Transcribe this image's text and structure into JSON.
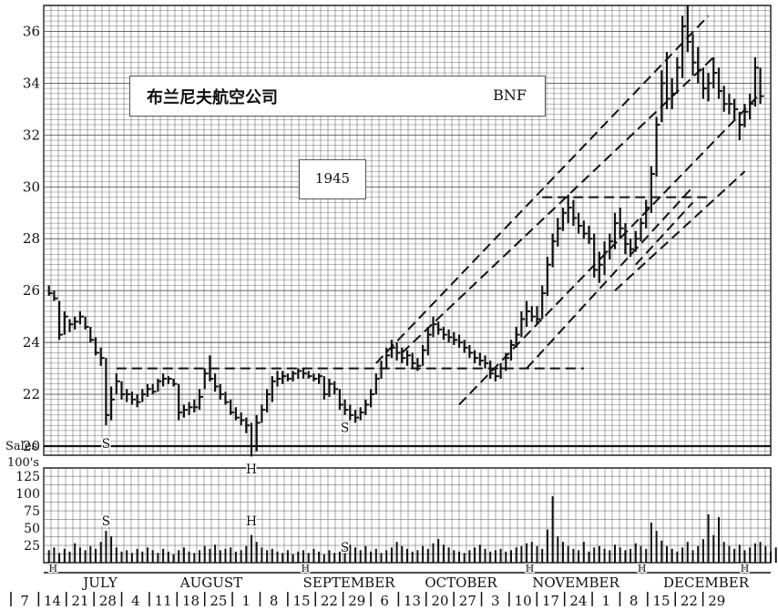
{
  "title": {
    "name": "布兰尼夫航空公司",
    "ticker": "BNF",
    "year": "1945"
  },
  "chart_data": [
    {
      "type": "bar",
      "name": "price",
      "ylim": [
        20,
        37
      ],
      "yticks": [
        20,
        22,
        24,
        26,
        28,
        30,
        32,
        34,
        36
      ],
      "days": [
        {
          "h": 26.2,
          "l": 25.8,
          "c": 25.9
        },
        {
          "h": 26.0,
          "l": 25.6,
          "c": 25.7
        },
        {
          "h": 25.6,
          "l": 24.1,
          "c": 24.3
        },
        {
          "h": 25.2,
          "l": 24.3,
          "c": 25.0
        },
        {
          "h": 24.9,
          "l": 24.4,
          "c": 24.7
        },
        {
          "h": 25.0,
          "l": 24.5,
          "c": 24.8
        },
        {
          "h": 25.2,
          "l": 24.7,
          "c": 25.0
        },
        {
          "h": 25.0,
          "l": 24.5,
          "c": 24.6
        },
        {
          "h": 24.6,
          "l": 24.0,
          "c": 24.1
        },
        {
          "h": 24.2,
          "l": 23.5,
          "c": 23.6
        },
        {
          "h": 23.8,
          "l": 23.1,
          "c": 23.4
        },
        {
          "h": 23.4,
          "l": 20.8,
          "c": 21.2
        },
        {
          "h": 22.3,
          "l": 21.0,
          "c": 21.8
        },
        {
          "h": 22.8,
          "l": 22.0,
          "c": 22.5
        },
        {
          "h": 22.5,
          "l": 21.8,
          "c": 22.0
        },
        {
          "h": 22.2,
          "l": 21.7,
          "c": 22.0
        },
        {
          "h": 22.1,
          "l": 21.6,
          "c": 21.8
        },
        {
          "h": 22.0,
          "l": 21.5,
          "c": 21.7
        },
        {
          "h": 22.2,
          "l": 21.7,
          "c": 22.0
        },
        {
          "h": 22.4,
          "l": 21.9,
          "c": 22.2
        },
        {
          "h": 22.4,
          "l": 22.0,
          "c": 22.1
        },
        {
          "h": 22.6,
          "l": 22.1,
          "c": 22.5
        },
        {
          "h": 22.8,
          "l": 22.3,
          "c": 22.6
        },
        {
          "h": 22.7,
          "l": 22.4,
          "c": 22.6
        },
        {
          "h": 22.6,
          "l": 22.3,
          "c": 22.4
        },
        {
          "h": 22.4,
          "l": 21.0,
          "c": 21.3
        },
        {
          "h": 21.6,
          "l": 21.1,
          "c": 21.4
        },
        {
          "h": 21.7,
          "l": 21.2,
          "c": 21.5
        },
        {
          "h": 21.8,
          "l": 21.3,
          "c": 21.5
        },
        {
          "h": 22.2,
          "l": 21.4,
          "c": 21.9
        },
        {
          "h": 23.0,
          "l": 22.2,
          "c": 22.8
        },
        {
          "h": 23.5,
          "l": 22.5,
          "c": 22.6
        },
        {
          "h": 22.8,
          "l": 22.1,
          "c": 22.3
        },
        {
          "h": 22.4,
          "l": 21.8,
          "c": 22.0
        },
        {
          "h": 22.1,
          "l": 21.6,
          "c": 21.7
        },
        {
          "h": 21.8,
          "l": 21.2,
          "c": 21.3
        },
        {
          "h": 21.5,
          "l": 21.0,
          "c": 21.1
        },
        {
          "h": 21.3,
          "l": 20.8,
          "c": 21.0
        },
        {
          "h": 21.1,
          "l": 20.5,
          "c": 20.8
        },
        {
          "h": 20.9,
          "l": 19.6,
          "c": 20.0
        },
        {
          "h": 21.2,
          "l": 19.8,
          "c": 20.9
        },
        {
          "h": 21.6,
          "l": 20.9,
          "c": 21.4
        },
        {
          "h": 22.2,
          "l": 21.3,
          "c": 22.0
        },
        {
          "h": 22.7,
          "l": 21.7,
          "c": 22.5
        },
        {
          "h": 22.9,
          "l": 22.3,
          "c": 22.6
        },
        {
          "h": 22.9,
          "l": 22.4,
          "c": 22.7
        },
        {
          "h": 22.8,
          "l": 22.5,
          "c": 22.6
        },
        {
          "h": 22.9,
          "l": 22.5,
          "c": 22.8
        },
        {
          "h": 23.0,
          "l": 22.6,
          "c": 22.9
        },
        {
          "h": 23.0,
          "l": 22.6,
          "c": 22.8
        },
        {
          "h": 22.9,
          "l": 22.6,
          "c": 22.7
        },
        {
          "h": 22.8,
          "l": 22.5,
          "c": 22.6
        },
        {
          "h": 22.8,
          "l": 22.4,
          "c": 22.7
        },
        {
          "h": 22.7,
          "l": 21.8,
          "c": 22.0
        },
        {
          "h": 22.6,
          "l": 21.9,
          "c": 22.4
        },
        {
          "h": 22.5,
          "l": 22.0,
          "c": 22.2
        },
        {
          "h": 22.2,
          "l": 21.4,
          "c": 21.6
        },
        {
          "h": 21.8,
          "l": 21.2,
          "c": 21.4
        },
        {
          "h": 21.6,
          "l": 21.0,
          "c": 21.2
        },
        {
          "h": 21.4,
          "l": 20.9,
          "c": 21.1
        },
        {
          "h": 21.5,
          "l": 21.0,
          "c": 21.3
        },
        {
          "h": 21.8,
          "l": 21.2,
          "c": 21.6
        },
        {
          "h": 22.2,
          "l": 21.5,
          "c": 22.0
        },
        {
          "h": 22.8,
          "l": 22.0,
          "c": 22.6
        },
        {
          "h": 23.3,
          "l": 22.6,
          "c": 23.0
        },
        {
          "h": 23.8,
          "l": 23.0,
          "c": 23.5
        },
        {
          "h": 24.1,
          "l": 23.4,
          "c": 23.8
        },
        {
          "h": 24.0,
          "l": 23.3,
          "c": 23.6
        },
        {
          "h": 23.8,
          "l": 23.2,
          "c": 23.4
        },
        {
          "h": 23.7,
          "l": 23.1,
          "c": 23.5
        },
        {
          "h": 23.6,
          "l": 23.0,
          "c": 23.2
        },
        {
          "h": 23.4,
          "l": 22.9,
          "c": 23.1
        },
        {
          "h": 23.9,
          "l": 23.1,
          "c": 23.7
        },
        {
          "h": 24.6,
          "l": 23.5,
          "c": 24.3
        },
        {
          "h": 25.0,
          "l": 24.2,
          "c": 24.7
        },
        {
          "h": 24.8,
          "l": 24.3,
          "c": 24.5
        },
        {
          "h": 24.6,
          "l": 24.1,
          "c": 24.3
        },
        {
          "h": 24.5,
          "l": 24.0,
          "c": 24.2
        },
        {
          "h": 24.4,
          "l": 23.9,
          "c": 24.1
        },
        {
          "h": 24.3,
          "l": 23.8,
          "c": 24.0
        },
        {
          "h": 24.1,
          "l": 23.6,
          "c": 23.8
        },
        {
          "h": 23.9,
          "l": 23.4,
          "c": 23.6
        },
        {
          "h": 23.7,
          "l": 23.2,
          "c": 23.4
        },
        {
          "h": 23.6,
          "l": 23.1,
          "c": 23.3
        },
        {
          "h": 23.5,
          "l": 23.0,
          "c": 23.2
        },
        {
          "h": 23.3,
          "l": 22.6,
          "c": 22.8
        },
        {
          "h": 23.0,
          "l": 22.5,
          "c": 22.7
        },
        {
          "h": 23.2,
          "l": 22.6,
          "c": 23.0
        },
        {
          "h": 23.6,
          "l": 22.9,
          "c": 23.4
        },
        {
          "h": 24.1,
          "l": 23.3,
          "c": 23.9
        },
        {
          "h": 24.6,
          "l": 23.8,
          "c": 24.3
        },
        {
          "h": 25.2,
          "l": 24.2,
          "c": 24.9
        },
        {
          "h": 25.6,
          "l": 24.6,
          "c": 25.2
        },
        {
          "h": 25.4,
          "l": 24.8,
          "c": 25.0
        },
        {
          "h": 25.4,
          "l": 24.7,
          "c": 24.9
        },
        {
          "h": 26.2,
          "l": 24.9,
          "c": 25.9
        },
        {
          "h": 27.3,
          "l": 25.8,
          "c": 27.0
        },
        {
          "h": 28.2,
          "l": 26.9,
          "c": 27.9
        },
        {
          "h": 28.8,
          "l": 27.7,
          "c": 28.4
        },
        {
          "h": 29.2,
          "l": 28.3,
          "c": 29.0
        },
        {
          "h": 29.7,
          "l": 28.6,
          "c": 29.2
        },
        {
          "h": 29.5,
          "l": 28.5,
          "c": 28.8
        },
        {
          "h": 29.0,
          "l": 28.2,
          "c": 28.5
        },
        {
          "h": 28.7,
          "l": 28.0,
          "c": 28.2
        },
        {
          "h": 28.5,
          "l": 27.8,
          "c": 28.0
        },
        {
          "h": 28.2,
          "l": 26.5,
          "c": 26.8
        },
        {
          "h": 27.5,
          "l": 26.3,
          "c": 27.0
        },
        {
          "h": 27.9,
          "l": 26.6,
          "c": 27.5
        },
        {
          "h": 28.2,
          "l": 27.2,
          "c": 27.9
        },
        {
          "h": 29.0,
          "l": 27.6,
          "c": 28.6
        },
        {
          "h": 29.2,
          "l": 28.0,
          "c": 28.4
        },
        {
          "h": 28.6,
          "l": 27.4,
          "c": 27.8
        },
        {
          "h": 28.0,
          "l": 27.3,
          "c": 27.6
        },
        {
          "h": 28.3,
          "l": 27.5,
          "c": 28.0
        },
        {
          "h": 28.8,
          "l": 27.9,
          "c": 28.6
        },
        {
          "h": 29.5,
          "l": 28.4,
          "c": 29.2
        },
        {
          "h": 30.8,
          "l": 29.0,
          "c": 30.5
        },
        {
          "h": 32.7,
          "l": 30.4,
          "c": 32.4
        },
        {
          "h": 34.5,
          "l": 32.5,
          "c": 34.0
        },
        {
          "h": 35.2,
          "l": 33.0,
          "c": 33.4
        },
        {
          "h": 34.2,
          "l": 33.0,
          "c": 33.6
        },
        {
          "h": 35.0,
          "l": 33.6,
          "c": 34.6
        },
        {
          "h": 36.6,
          "l": 34.2,
          "c": 36.2
        },
        {
          "h": 37.0,
          "l": 35.2,
          "c": 35.6
        },
        {
          "h": 35.9,
          "l": 34.3,
          "c": 34.8
        },
        {
          "h": 35.4,
          "l": 34.0,
          "c": 34.5
        },
        {
          "h": 34.6,
          "l": 33.4,
          "c": 33.8
        },
        {
          "h": 34.4,
          "l": 33.3,
          "c": 34.0
        },
        {
          "h": 35.0,
          "l": 33.8,
          "c": 34.4
        },
        {
          "h": 34.6,
          "l": 33.4,
          "c": 33.7
        },
        {
          "h": 33.9,
          "l": 32.9,
          "c": 33.2
        },
        {
          "h": 33.6,
          "l": 32.8,
          "c": 33.2
        },
        {
          "h": 33.4,
          "l": 32.6,
          "c": 33.0
        },
        {
          "h": 32.9,
          "l": 31.8,
          "c": 32.4
        },
        {
          "h": 33.2,
          "l": 32.3,
          "c": 32.9
        },
        {
          "h": 33.6,
          "l": 32.6,
          "c": 33.2
        },
        {
          "h": 35.0,
          "l": 33.1,
          "c": 34.6
        },
        {
          "h": 34.6,
          "l": 33.2,
          "c": 33.5
        }
      ],
      "annotations": [
        {
          "text": "S",
          "day": 11,
          "price": 20.5
        },
        {
          "text": "H",
          "day": 39,
          "price": 19.5
        },
        {
          "text": "S",
          "day": 57,
          "price": 21.1
        }
      ]
    },
    {
      "type": "bar",
      "name": "volume",
      "ylabel": "Sales 100's",
      "ylim": [
        0,
        137
      ],
      "yticks": [
        25,
        50,
        75,
        100,
        125
      ],
      "values": [
        18,
        22,
        14,
        20,
        16,
        28,
        22,
        18,
        24,
        20,
        30,
        46,
        38,
        22,
        16,
        18,
        14,
        20,
        16,
        22,
        18,
        14,
        20,
        16,
        12,
        18,
        22,
        16,
        14,
        18,
        24,
        20,
        26,
        18,
        20,
        22,
        16,
        18,
        24,
        40,
        30,
        22,
        18,
        20,
        16,
        14,
        18,
        12,
        16,
        18,
        14,
        20,
        16,
        12,
        18,
        14,
        16,
        20,
        26,
        22,
        18,
        24,
        16,
        20,
        14,
        18,
        22,
        30,
        24,
        20,
        16,
        18,
        24,
        20,
        28,
        34,
        26,
        22,
        18,
        16,
        14,
        18,
        22,
        26,
        20,
        16,
        18,
        20,
        16,
        18,
        22,
        24,
        28,
        30,
        24,
        20,
        48,
        96,
        38,
        30,
        24,
        20,
        18,
        30,
        16,
        22,
        24,
        20,
        18,
        26,
        22,
        18,
        20,
        28,
        24,
        20,
        58,
        46,
        32,
        24,
        20,
        16,
        22,
        30,
        18,
        24,
        34,
        70,
        40,
        66,
        30,
        24,
        20,
        26,
        18,
        22,
        28,
        30,
        24,
        16,
        22,
        30
      ],
      "annotations": [
        {
          "text": "S",
          "day": 11,
          "volume": 62
        },
        {
          "text": "H",
          "day": 39,
          "volume": 62
        },
        {
          "text": "S",
          "day": 57,
          "volume": 24
        }
      ]
    }
  ],
  "x_axis": {
    "months": [
      "JULY",
      "AUGUST",
      "SEPTEMBER",
      "OCTOBER",
      "NOVEMBER",
      "DECEMBER"
    ],
    "week_labels": [
      "7",
      "14",
      "21",
      "28",
      "4",
      "11",
      "18",
      "25",
      "1",
      "8",
      "15",
      "22",
      "29",
      "6",
      "13",
      "20",
      "27",
      "3",
      "10",
      "17",
      "24",
      "1",
      "8",
      "15",
      "22",
      "29"
    ],
    "holiday_marker": "H"
  }
}
